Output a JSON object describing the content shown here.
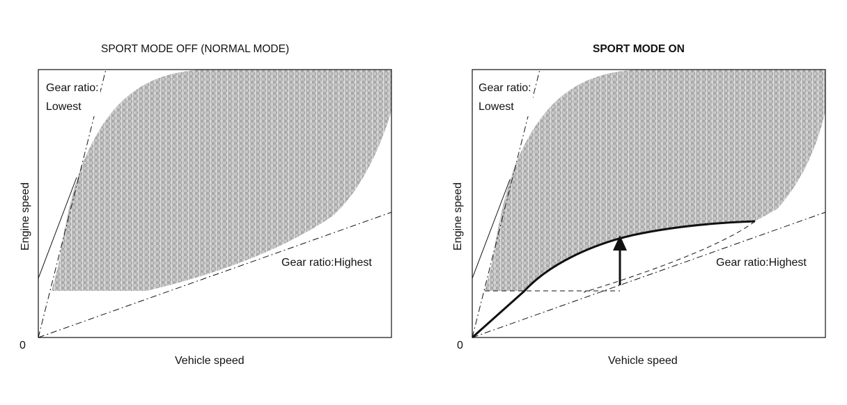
{
  "figure": {
    "origin_label": "0",
    "x_label": "Vehicle speed",
    "y_label": "Engine speed",
    "panels": [
      {
        "title": "SPORT MODE OFF (NORMAL MODE)",
        "lowest_line1": "Gear ratio:",
        "lowest_line2": "Lowest",
        "highest": "Gear ratio:Highest"
      },
      {
        "title": "SPORT MODE ON",
        "lowest_line1": "Gear ratio:",
        "lowest_line2": "Lowest",
        "highest": "Gear ratio:Highest"
      }
    ]
  },
  "colors": {
    "shade": "#b9b9b9",
    "line": "#111111"
  }
}
